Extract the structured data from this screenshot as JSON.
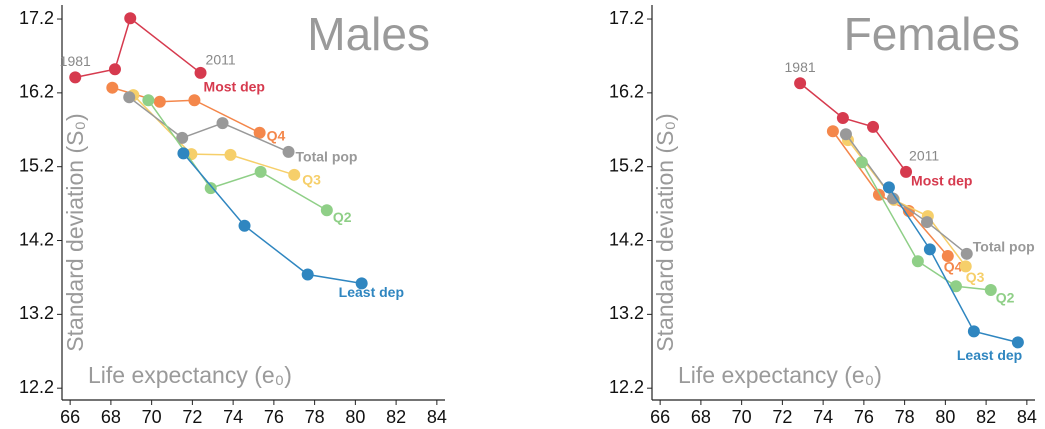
{
  "chart_data": [
    {
      "type": "line",
      "title": "Males",
      "x_label": "Life expectancy (e₀)",
      "y_label": "Standard deviation (S₀)",
      "annotations": [
        "1981",
        "2011"
      ],
      "xlim": [
        65.6,
        84.4
      ],
      "ylim": [
        12.04,
        17.39
      ],
      "xticks": [
        66,
        68,
        70,
        72,
        74,
        76,
        78,
        80,
        82,
        84
      ],
      "yticks": [
        12.2,
        13.2,
        14.2,
        15.2,
        16.2,
        17.2
      ],
      "series": [
        {
          "name": "Most dep",
          "color": "#d63a4e",
          "x": [
            66.25,
            68.2,
            68.95,
            72.4
          ],
          "values": [
            16.41,
            16.52,
            17.21,
            16.47
          ]
        },
        {
          "name": "Q4",
          "color": "#f4874b",
          "x": [
            68.07,
            70.4,
            72.1,
            75.3
          ],
          "values": [
            16.27,
            16.08,
            16.1,
            15.66
          ]
        },
        {
          "name": "Q3",
          "color": "#f6cf6a",
          "x": [
            69.1,
            71.95,
            73.87,
            77.0
          ],
          "values": [
            16.17,
            15.37,
            15.36,
            15.09
          ]
        },
        {
          "name": "Total pop",
          "color": "#999999",
          "x": [
            68.9,
            71.5,
            73.48,
            76.72
          ],
          "values": [
            16.14,
            15.59,
            15.79,
            15.4
          ]
        },
        {
          "name": "Q2",
          "color": "#8fcf87",
          "x": [
            69.84,
            72.9,
            75.35,
            78.6
          ],
          "values": [
            16.1,
            14.91,
            15.13,
            14.61
          ]
        },
        {
          "name": "Least dep",
          "color": "#2f86c0",
          "x": [
            71.56,
            74.56,
            77.66,
            80.31
          ],
          "values": [
            15.38,
            14.4,
            13.74,
            13.62
          ]
        }
      ]
    },
    {
      "type": "line",
      "title": "Females",
      "x_label": "Life expectancy (e₀)",
      "y_label": "Standard deviation (S₀)",
      "annotations": [
        "1981",
        "2011"
      ],
      "xlim": [
        65.6,
        84.4
      ],
      "ylim": [
        12.04,
        17.39
      ],
      "xticks": [
        66,
        68,
        70,
        72,
        74,
        76,
        78,
        80,
        82,
        84
      ],
      "yticks": [
        12.2,
        13.2,
        14.2,
        15.2,
        16.2,
        17.2
      ],
      "series": [
        {
          "name": "Most dep",
          "color": "#d63a4e",
          "x": [
            72.87,
            74.97,
            76.45,
            78.07
          ],
          "values": [
            16.33,
            15.86,
            15.74,
            15.13
          ]
        },
        {
          "name": "Q4",
          "color": "#f4874b",
          "x": [
            74.48,
            76.74,
            78.21,
            80.12
          ],
          "values": [
            15.68,
            14.82,
            14.6,
            13.99
          ]
        },
        {
          "name": "Q3",
          "color": "#f6cf6a",
          "x": [
            75.22,
            77.48,
            79.14,
            81.0
          ],
          "values": [
            15.56,
            14.75,
            14.53,
            13.85
          ]
        },
        {
          "name": "Total pop",
          "color": "#999999",
          "x": [
            75.12,
            77.43,
            79.1,
            81.05
          ],
          "values": [
            15.64,
            14.77,
            14.45,
            14.02
          ]
        },
        {
          "name": "Q2",
          "color": "#8fcf87",
          "x": [
            75.9,
            78.65,
            80.52,
            82.23
          ],
          "values": [
            15.26,
            13.92,
            13.58,
            13.53
          ]
        },
        {
          "name": "Least dep",
          "color": "#2f86c0",
          "x": [
            77.23,
            79.24,
            81.4,
            83.56
          ],
          "values": [
            14.92,
            14.08,
            12.97,
            12.82
          ]
        }
      ]
    }
  ]
}
